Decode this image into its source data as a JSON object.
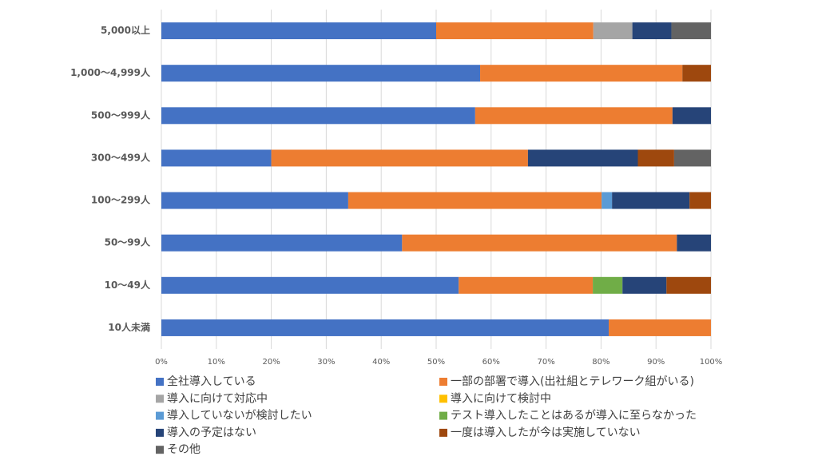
{
  "chart_data": {
    "type": "stacked_barh",
    "categories": [
      "5,000以上",
      "1,000～4,999人",
      "500～999人",
      "300～499人",
      "100～299人",
      "50～99人",
      "10～49人",
      "10人未満"
    ],
    "series": [
      {
        "name": "全社導入している",
        "color": "#4472c4",
        "values": [
          50,
          58,
          57.1,
          20,
          34,
          43.8,
          54.1,
          81.4
        ]
      },
      {
        "name": "一部の部署で導入(出社組とテレワーク組がいる)",
        "color": "#ed7d31",
        "values": [
          28.6,
          36.8,
          35.9,
          46.7,
          46.1,
          50,
          24.4,
          18.6
        ]
      },
      {
        "name": "導入に向けて対応中",
        "color": "#a5a5a5",
        "values": [
          7.1,
          0,
          0,
          0,
          0,
          0,
          0,
          0
        ]
      },
      {
        "name": "導入に向けて検討中",
        "color": "#ffc000",
        "values": [
          0,
          0,
          0,
          0,
          0,
          0,
          0,
          0
        ]
      },
      {
        "name": "導入していないが検討したい",
        "color": "#5b9bd5",
        "values": [
          0,
          0,
          0,
          0,
          1.9,
          0,
          0,
          0
        ]
      },
      {
        "name": "テスト導入したことはあるが導入に至らなかった",
        "color": "#70ad47",
        "values": [
          0,
          0,
          0,
          0,
          0,
          0,
          5.4,
          0
        ]
      },
      {
        "name": "導入の予定はない",
        "color": "#264478",
        "values": [
          7.1,
          0,
          7,
          20,
          14.1,
          6.2,
          8,
          0
        ]
      },
      {
        "name": "一度は導入したが今は実施していない",
        "color": "#9e480e",
        "values": [
          0,
          5.2,
          0,
          6.6,
          3.9,
          0,
          8.1,
          0
        ]
      },
      {
        "name": "その他",
        "color": "#636363",
        "values": [
          7.2,
          0,
          0,
          6.7,
          0,
          0,
          0,
          0
        ]
      }
    ],
    "xlim": [
      0,
      100
    ],
    "xticks": [
      {
        "value": 0,
        "label": "0%"
      },
      {
        "value": 10,
        "label": "10%"
      },
      {
        "value": 20,
        "label": "20%"
      },
      {
        "value": 30,
        "label": "30%"
      },
      {
        "value": 40,
        "label": "40%"
      },
      {
        "value": 50,
        "label": "50%"
      },
      {
        "value": 60,
        "label": "60%"
      },
      {
        "value": 70,
        "label": "70%"
      },
      {
        "value": 80,
        "label": "80%"
      },
      {
        "value": 90,
        "label": "90%"
      },
      {
        "value": 100,
        "label": "100%"
      }
    ],
    "grid": true
  }
}
